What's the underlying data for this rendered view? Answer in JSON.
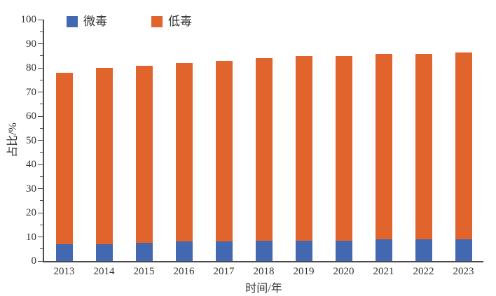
{
  "chart_data": {
    "type": "bar",
    "stacked": true,
    "title": "",
    "xlabel": "时间/年",
    "ylabel": "占比/%",
    "ylim": [
      0,
      100
    ],
    "y_major_step": 10,
    "y_minor_step": 5,
    "grid": false,
    "legend_position": "top-left-inside",
    "categories": [
      "2013",
      "2014",
      "2015",
      "2016",
      "2017",
      "2018",
      "2019",
      "2020",
      "2021",
      "2022",
      "2023"
    ],
    "series": [
      {
        "name": "微毒",
        "color": "#4268B2",
        "values": [
          7,
          7,
          7.5,
          8,
          8,
          8.5,
          8.5,
          8.5,
          9,
          9,
          9
        ]
      },
      {
        "name": "低毒",
        "color": "#E2642D",
        "values": [
          71,
          73,
          73.5,
          74,
          75,
          75.5,
          76.3,
          76.3,
          76.7,
          76.7,
          77.3
        ]
      }
    ]
  },
  "colors": {
    "axis": "#4a4a4a",
    "text": "#333333",
    "background": "#ffffff",
    "series_blue": "#4268B2",
    "series_orange": "#E2642D"
  }
}
